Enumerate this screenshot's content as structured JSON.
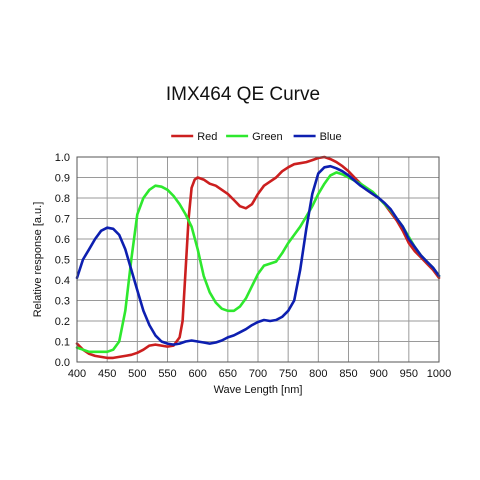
{
  "chart_data": {
    "type": "line",
    "title": "IMX464 QE Curve",
    "xlabel": "Wave Length [nm]",
    "ylabel": "Relative response [a.u.]",
    "xlim": [
      400,
      1000
    ],
    "ylim": [
      0.0,
      1.0
    ],
    "x_ticks": [
      "400",
      "450",
      "500",
      "550",
      "600",
      "650",
      "700",
      "750",
      "800",
      "850",
      "900",
      "950",
      "1000"
    ],
    "y_ticks": [
      "0.0",
      "0.1",
      "0.2",
      "0.3",
      "0.4",
      "0.5",
      "0.6",
      "0.7",
      "0.8",
      "0.9",
      "1.0"
    ],
    "grid": true,
    "legend_position": "top",
    "series": [
      {
        "name": "Red",
        "color": "#cc1f1f",
        "x": [
          400,
          410,
          420,
          430,
          440,
          450,
          460,
          470,
          480,
          490,
          500,
          510,
          520,
          530,
          540,
          550,
          560,
          570,
          575,
          580,
          585,
          590,
          595,
          600,
          610,
          620,
          630,
          640,
          650,
          660,
          670,
          680,
          690,
          700,
          710,
          720,
          730,
          740,
          750,
          760,
          770,
          780,
          790,
          800,
          810,
          820,
          830,
          840,
          850,
          860,
          870,
          880,
          890,
          900,
          910,
          920,
          930,
          940,
          950,
          960,
          970,
          980,
          990,
          1000
        ],
        "values": [
          0.09,
          0.06,
          0.04,
          0.03,
          0.025,
          0.02,
          0.02,
          0.025,
          0.03,
          0.035,
          0.045,
          0.06,
          0.08,
          0.085,
          0.08,
          0.075,
          0.08,
          0.12,
          0.2,
          0.45,
          0.7,
          0.85,
          0.89,
          0.9,
          0.89,
          0.87,
          0.86,
          0.84,
          0.82,
          0.79,
          0.76,
          0.75,
          0.77,
          0.82,
          0.86,
          0.88,
          0.9,
          0.93,
          0.95,
          0.965,
          0.97,
          0.975,
          0.985,
          0.995,
          1.0,
          0.99,
          0.975,
          0.955,
          0.93,
          0.9,
          0.87,
          0.84,
          0.82,
          0.8,
          0.77,
          0.73,
          0.69,
          0.64,
          0.58,
          0.54,
          0.51,
          0.48,
          0.45,
          0.41
        ]
      },
      {
        "name": "Green",
        "color": "#2ee82e",
        "x": [
          400,
          410,
          420,
          430,
          440,
          450,
          460,
          470,
          480,
          490,
          500,
          510,
          520,
          530,
          540,
          550,
          560,
          570,
          580,
          590,
          600,
          610,
          620,
          630,
          640,
          650,
          660,
          670,
          680,
          690,
          700,
          710,
          720,
          730,
          740,
          750,
          760,
          770,
          780,
          790,
          800,
          810,
          820,
          830,
          840,
          850,
          860,
          870,
          880,
          890,
          900,
          910,
          920,
          930,
          940,
          950,
          960,
          970,
          980,
          990,
          1000
        ],
        "values": [
          0.07,
          0.06,
          0.05,
          0.05,
          0.05,
          0.05,
          0.06,
          0.1,
          0.25,
          0.5,
          0.72,
          0.8,
          0.84,
          0.86,
          0.855,
          0.84,
          0.81,
          0.77,
          0.72,
          0.66,
          0.55,
          0.42,
          0.34,
          0.29,
          0.26,
          0.25,
          0.25,
          0.27,
          0.31,
          0.37,
          0.43,
          0.47,
          0.48,
          0.49,
          0.53,
          0.58,
          0.62,
          0.66,
          0.71,
          0.76,
          0.82,
          0.87,
          0.91,
          0.925,
          0.915,
          0.9,
          0.885,
          0.87,
          0.85,
          0.83,
          0.8,
          0.77,
          0.74,
          0.7,
          0.66,
          0.61,
          0.56,
          0.52,
          0.49,
          0.46,
          0.42
        ]
      },
      {
        "name": "Blue",
        "color": "#0d1fb0",
        "x": [
          400,
          410,
          420,
          430,
          440,
          450,
          460,
          470,
          480,
          490,
          500,
          510,
          520,
          530,
          540,
          550,
          560,
          570,
          580,
          590,
          600,
          610,
          620,
          630,
          640,
          650,
          660,
          670,
          680,
          690,
          700,
          710,
          720,
          730,
          740,
          750,
          760,
          770,
          780,
          790,
          800,
          810,
          820,
          830,
          840,
          850,
          860,
          870,
          880,
          890,
          900,
          910,
          920,
          930,
          940,
          950,
          960,
          970,
          980,
          990,
          1000
        ],
        "values": [
          0.41,
          0.5,
          0.55,
          0.6,
          0.64,
          0.655,
          0.65,
          0.62,
          0.55,
          0.45,
          0.35,
          0.25,
          0.18,
          0.13,
          0.1,
          0.09,
          0.085,
          0.09,
          0.1,
          0.105,
          0.1,
          0.095,
          0.09,
          0.095,
          0.105,
          0.12,
          0.13,
          0.145,
          0.16,
          0.18,
          0.195,
          0.205,
          0.2,
          0.205,
          0.22,
          0.25,
          0.3,
          0.45,
          0.65,
          0.82,
          0.92,
          0.95,
          0.955,
          0.945,
          0.93,
          0.91,
          0.885,
          0.86,
          0.84,
          0.82,
          0.8,
          0.775,
          0.745,
          0.7,
          0.66,
          0.6,
          0.56,
          0.52,
          0.49,
          0.46,
          0.42
        ]
      }
    ]
  }
}
